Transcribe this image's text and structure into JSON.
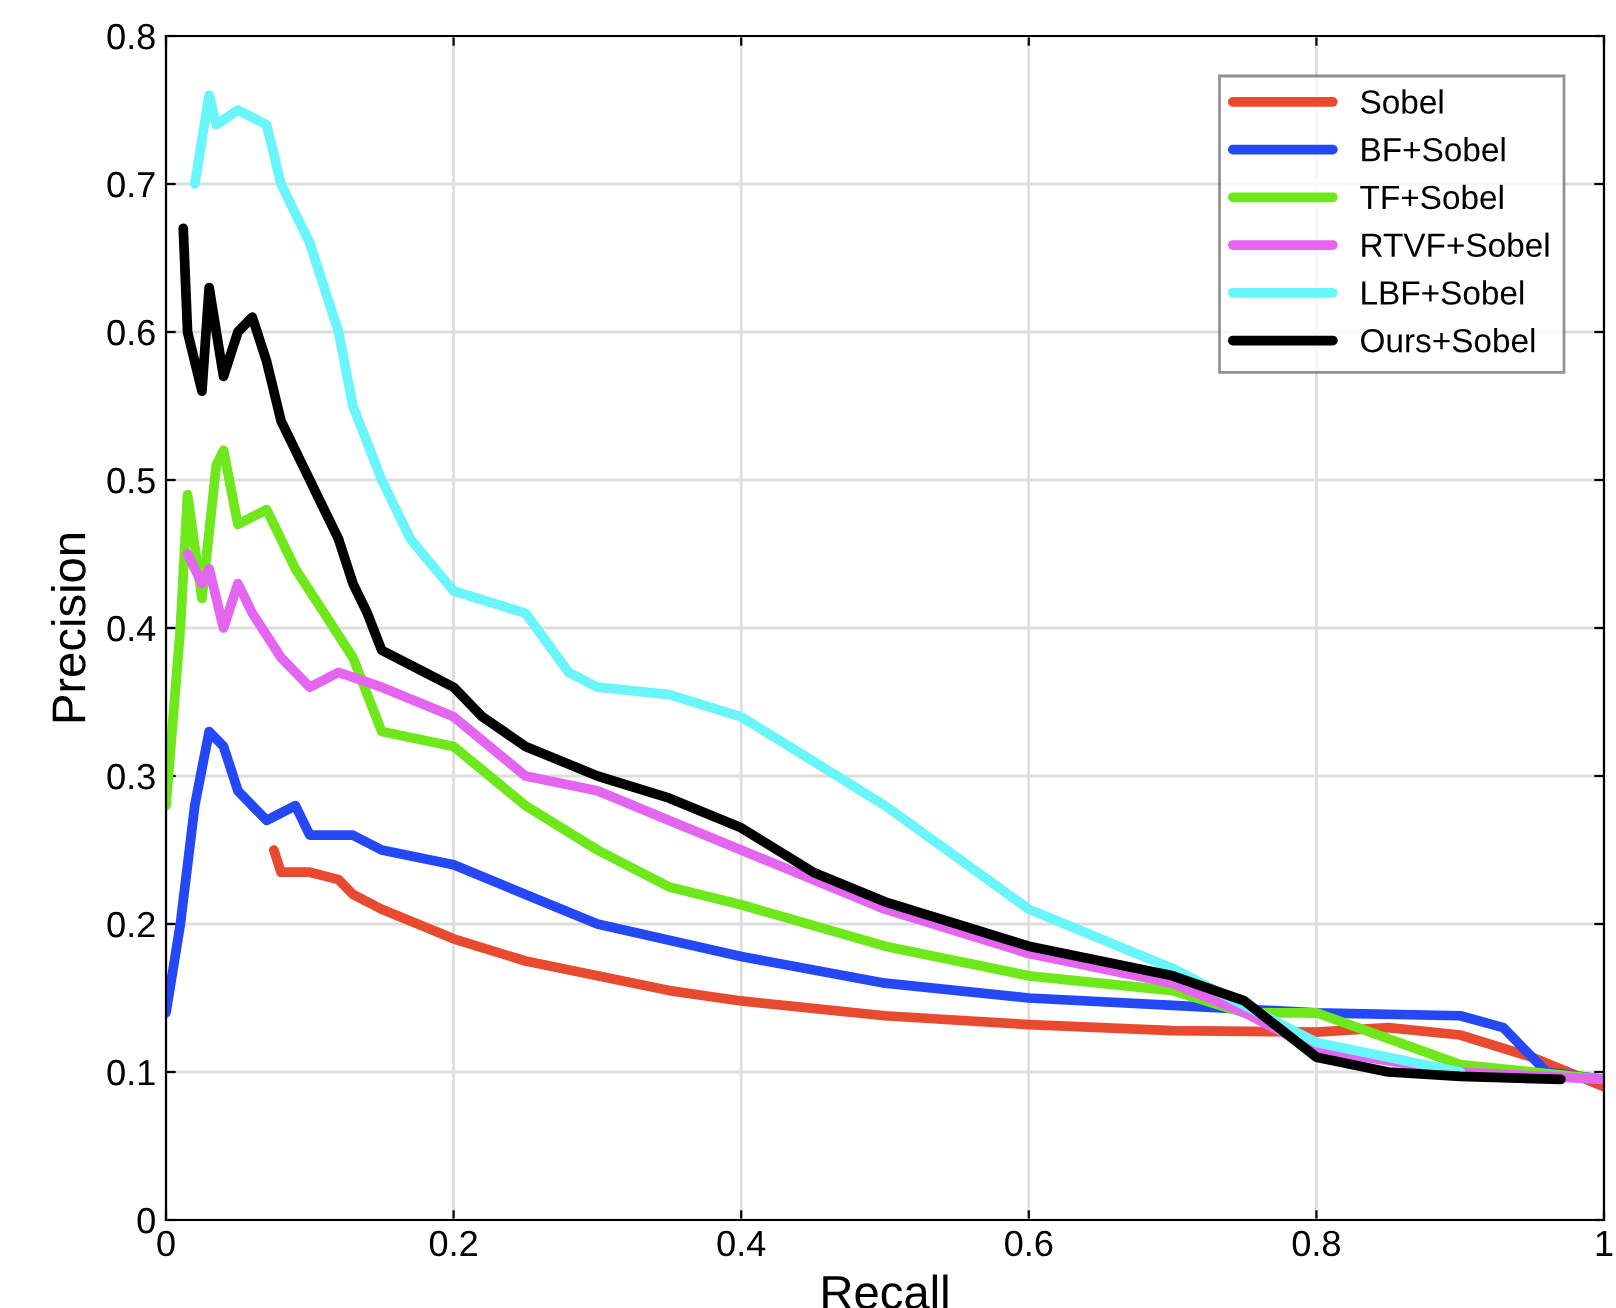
{
  "chart_data": {
    "type": "line",
    "xlabel": "Recall",
    "ylabel": "Precision",
    "xlim": [
      0,
      1
    ],
    "ylim": [
      0,
      0.8
    ],
    "xticks": [
      0,
      0.2,
      0.4,
      0.6,
      0.8,
      1
    ],
    "yticks": [
      0,
      0.1,
      0.2,
      0.3,
      0.4,
      0.5,
      0.6,
      0.7,
      0.8
    ],
    "grid": true,
    "legend": "top right",
    "series": [
      {
        "name": "Sobel",
        "color": "#e84a30",
        "x": [
          0.075,
          0.08,
          0.1,
          0.12,
          0.13,
          0.15,
          0.2,
          0.25,
          0.3,
          0.35,
          0.4,
          0.5,
          0.6,
          0.7,
          0.8,
          0.85,
          0.9,
          0.95,
          1.0
        ],
        "values": [
          0.25,
          0.235,
          0.235,
          0.23,
          0.22,
          0.21,
          0.19,
          0.175,
          0.165,
          0.155,
          0.148,
          0.138,
          0.132,
          0.128,
          0.127,
          0.13,
          0.125,
          0.11,
          0.09
        ]
      },
      {
        "name": "BF+Sobel",
        "color": "#2448f5",
        "x": [
          0.0,
          0.01,
          0.02,
          0.03,
          0.04,
          0.05,
          0.07,
          0.09,
          0.1,
          0.13,
          0.15,
          0.2,
          0.25,
          0.3,
          0.4,
          0.5,
          0.6,
          0.7,
          0.8,
          0.9,
          0.93,
          0.96,
          1.0
        ],
        "values": [
          0.14,
          0.2,
          0.28,
          0.33,
          0.32,
          0.29,
          0.27,
          0.28,
          0.26,
          0.26,
          0.25,
          0.24,
          0.22,
          0.2,
          0.178,
          0.16,
          0.15,
          0.145,
          0.14,
          0.138,
          0.13,
          0.1,
          0.095
        ]
      },
      {
        "name": "TF+Sobel",
        "color": "#6ee81a",
        "x": [
          0.0,
          0.01,
          0.015,
          0.025,
          0.035,
          0.04,
          0.05,
          0.07,
          0.09,
          0.11,
          0.13,
          0.15,
          0.2,
          0.25,
          0.3,
          0.35,
          0.4,
          0.5,
          0.6,
          0.7,
          0.75,
          0.8,
          0.9,
          1.0
        ],
        "values": [
          0.28,
          0.4,
          0.49,
          0.42,
          0.51,
          0.52,
          0.47,
          0.48,
          0.44,
          0.41,
          0.38,
          0.33,
          0.32,
          0.28,
          0.25,
          0.225,
          0.213,
          0.185,
          0.165,
          0.155,
          0.14,
          0.14,
          0.105,
          0.095
        ]
      },
      {
        "name": "RTVF+Sobel",
        "color": "#e466f0",
        "x": [
          0.015,
          0.025,
          0.03,
          0.04,
          0.05,
          0.06,
          0.08,
          0.1,
          0.12,
          0.15,
          0.2,
          0.25,
          0.3,
          0.35,
          0.4,
          0.5,
          0.6,
          0.7,
          0.75,
          0.8,
          0.9,
          1.0
        ],
        "values": [
          0.45,
          0.43,
          0.44,
          0.4,
          0.43,
          0.41,
          0.38,
          0.36,
          0.37,
          0.36,
          0.34,
          0.3,
          0.29,
          0.27,
          0.25,
          0.21,
          0.18,
          0.16,
          0.14,
          0.115,
          0.1,
          0.095
        ]
      },
      {
        "name": "LBF+Sobel",
        "color": "#6af5fa",
        "x": [
          0.02,
          0.03,
          0.035,
          0.05,
          0.07,
          0.08,
          0.1,
          0.12,
          0.13,
          0.15,
          0.17,
          0.2,
          0.25,
          0.28,
          0.3,
          0.35,
          0.4,
          0.45,
          0.5,
          0.55,
          0.6,
          0.7,
          0.8,
          0.9
        ],
        "values": [
          0.7,
          0.76,
          0.74,
          0.75,
          0.74,
          0.7,
          0.66,
          0.6,
          0.55,
          0.5,
          0.46,
          0.425,
          0.41,
          0.37,
          0.36,
          0.355,
          0.34,
          0.31,
          0.28,
          0.245,
          0.21,
          0.17,
          0.12,
          0.1
        ]
      },
      {
        "name": "Ours+Sobel",
        "color": "#000000",
        "x": [
          0.012,
          0.015,
          0.02,
          0.025,
          0.03,
          0.04,
          0.05,
          0.06,
          0.07,
          0.08,
          0.1,
          0.12,
          0.13,
          0.14,
          0.15,
          0.18,
          0.2,
          0.22,
          0.25,
          0.3,
          0.35,
          0.4,
          0.45,
          0.5,
          0.6,
          0.7,
          0.75,
          0.8,
          0.85,
          0.9,
          0.97
        ],
        "values": [
          0.67,
          0.6,
          0.58,
          0.56,
          0.63,
          0.57,
          0.6,
          0.61,
          0.58,
          0.54,
          0.5,
          0.46,
          0.43,
          0.41,
          0.385,
          0.37,
          0.36,
          0.34,
          0.32,
          0.3,
          0.285,
          0.265,
          0.235,
          0.215,
          0.185,
          0.165,
          0.148,
          0.11,
          0.1,
          0.097,
          0.095
        ]
      }
    ]
  }
}
